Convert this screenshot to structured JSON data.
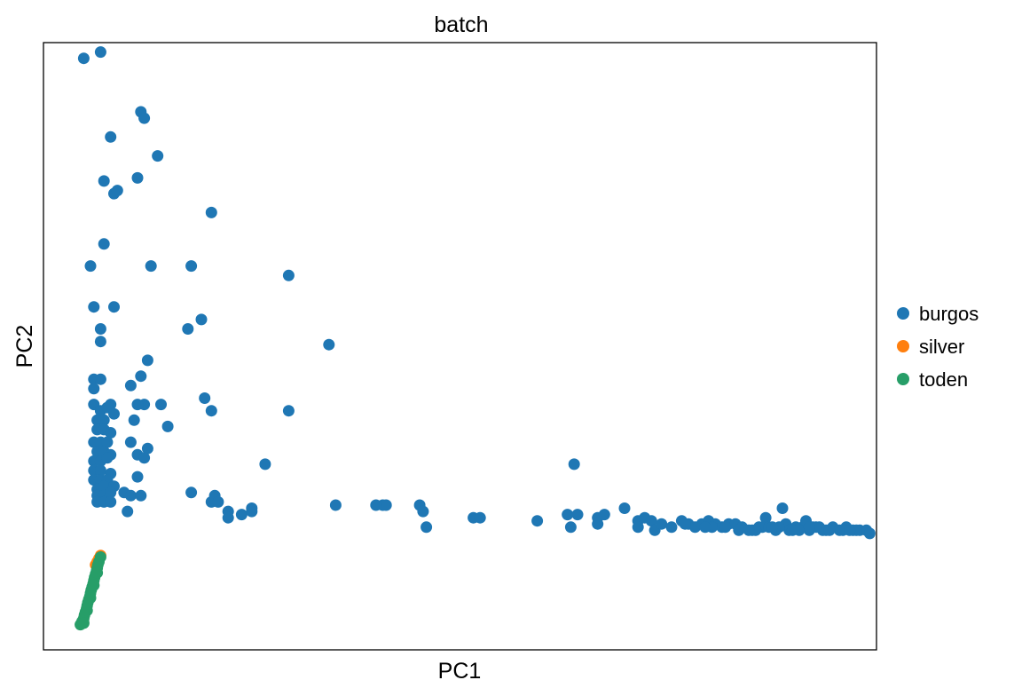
{
  "chart_data": {
    "type": "scatter",
    "title": "batch",
    "xlabel": "PC1",
    "ylabel": "PC2",
    "xlim": [
      -1.2,
      23.6
    ],
    "ylim": [
      -1.8,
      17.5
    ],
    "grid": false,
    "ticks": false,
    "legend": "right",
    "series": [
      {
        "name": "burgos",
        "color": "#1f77b4",
        "points": [
          [
            0.0,
            17.0
          ],
          [
            0.5,
            17.2
          ],
          [
            1.7,
            15.3
          ],
          [
            1.8,
            15.1
          ],
          [
            0.8,
            14.5
          ],
          [
            2.2,
            13.9
          ],
          [
            0.6,
            13.1
          ],
          [
            1.6,
            13.2
          ],
          [
            0.9,
            12.7
          ],
          [
            1.0,
            12.8
          ],
          [
            3.8,
            12.1
          ],
          [
            0.6,
            11.1
          ],
          [
            0.2,
            10.4
          ],
          [
            2.0,
            10.4
          ],
          [
            3.2,
            10.4
          ],
          [
            6.1,
            10.1
          ],
          [
            0.3,
            9.1
          ],
          [
            0.9,
            9.1
          ],
          [
            3.5,
            8.7
          ],
          [
            3.1,
            8.4
          ],
          [
            0.5,
            8.4
          ],
          [
            0.5,
            8.0
          ],
          [
            7.3,
            7.9
          ],
          [
            1.9,
            7.4
          ],
          [
            0.3,
            6.8
          ],
          [
            0.5,
            6.8
          ],
          [
            1.7,
            6.9
          ],
          [
            1.4,
            6.6
          ],
          [
            1.8,
            6.0
          ],
          [
            0.3,
            6.5
          ],
          [
            3.6,
            6.2
          ],
          [
            0.8,
            6.0
          ],
          [
            1.6,
            6.0
          ],
          [
            2.3,
            6.0
          ],
          [
            3.8,
            5.8
          ],
          [
            6.1,
            5.8
          ],
          [
            0.3,
            6.0
          ],
          [
            0.5,
            5.8
          ],
          [
            0.7,
            5.9
          ],
          [
            0.9,
            5.7
          ],
          [
            0.4,
            5.5
          ],
          [
            0.6,
            5.5
          ],
          [
            1.5,
            5.5
          ],
          [
            0.4,
            5.2
          ],
          [
            0.6,
            5.2
          ],
          [
            0.8,
            5.1
          ],
          [
            2.5,
            5.3
          ],
          [
            0.3,
            4.8
          ],
          [
            0.5,
            4.8
          ],
          [
            0.7,
            4.8
          ],
          [
            1.4,
            4.8
          ],
          [
            0.4,
            4.5
          ],
          [
            0.6,
            4.5
          ],
          [
            0.8,
            4.4
          ],
          [
            1.9,
            4.6
          ],
          [
            1.6,
            4.4
          ],
          [
            1.8,
            4.3
          ],
          [
            0.3,
            4.2
          ],
          [
            0.5,
            4.2
          ],
          [
            0.7,
            4.3
          ],
          [
            5.4,
            4.1
          ],
          [
            0.3,
            3.9
          ],
          [
            0.5,
            3.9
          ],
          [
            0.8,
            3.8
          ],
          [
            0.3,
            3.6
          ],
          [
            0.5,
            3.6
          ],
          [
            0.7,
            3.6
          ],
          [
            1.6,
            3.7
          ],
          [
            0.4,
            3.3
          ],
          [
            0.6,
            3.4
          ],
          [
            0.9,
            3.4
          ],
          [
            0.4,
            3.1
          ],
          [
            0.6,
            3.1
          ],
          [
            0.8,
            3.2
          ],
          [
            1.2,
            3.2
          ],
          [
            1.4,
            3.1
          ],
          [
            1.7,
            3.1
          ],
          [
            3.2,
            3.2
          ],
          [
            3.9,
            3.1
          ],
          [
            0.4,
            2.9
          ],
          [
            0.6,
            2.9
          ],
          [
            0.8,
            2.9
          ],
          [
            3.8,
            2.9
          ],
          [
            4.0,
            2.9
          ],
          [
            1.3,
            2.6
          ],
          [
            4.3,
            2.6
          ],
          [
            4.3,
            2.4
          ],
          [
            4.7,
            2.5
          ],
          [
            5.0,
            2.7
          ],
          [
            5.0,
            2.6
          ],
          [
            7.5,
            2.8
          ],
          [
            8.9,
            2.8
          ],
          [
            9.0,
            2.8
          ],
          [
            10.0,
            2.8
          ],
          [
            10.1,
            2.6
          ],
          [
            8.7,
            2.8
          ],
          [
            10.2,
            2.1
          ],
          [
            13.5,
            2.3
          ],
          [
            14.5,
            2.1
          ],
          [
            14.6,
            4.1
          ],
          [
            11.6,
            2.4
          ],
          [
            11.8,
            2.4
          ],
          [
            14.4,
            2.5
          ],
          [
            14.7,
            2.5
          ],
          [
            15.3,
            2.4
          ],
          [
            15.3,
            2.2
          ],
          [
            16.1,
            2.7
          ],
          [
            15.5,
            2.5
          ],
          [
            16.5,
            2.3
          ],
          [
            16.5,
            2.1
          ],
          [
            16.7,
            2.4
          ],
          [
            16.9,
            2.3
          ],
          [
            17.0,
            2.0
          ],
          [
            17.2,
            2.2
          ],
          [
            17.5,
            2.1
          ],
          [
            17.8,
            2.3
          ],
          [
            18.0,
            2.2
          ],
          [
            18.2,
            2.1
          ],
          [
            18.4,
            2.2
          ],
          [
            18.6,
            2.3
          ],
          [
            18.8,
            2.2
          ],
          [
            19.0,
            2.1
          ],
          [
            19.2,
            2.2
          ],
          [
            19.4,
            2.2
          ],
          [
            19.6,
            2.1
          ],
          [
            20.3,
            2.4
          ],
          [
            19.9,
            2.0
          ],
          [
            20.1,
            2.1
          ],
          [
            20.2,
            2.1
          ],
          [
            20.4,
            2.1
          ],
          [
            20.8,
            2.7
          ],
          [
            20.9,
            2.2
          ],
          [
            21.0,
            2.0
          ],
          [
            21.2,
            2.1
          ],
          [
            21.4,
            2.1
          ],
          [
            21.5,
            2.3
          ],
          [
            21.7,
            2.1
          ],
          [
            21.9,
            2.1
          ],
          [
            22.1,
            2.0
          ],
          [
            22.3,
            2.1
          ],
          [
            22.5,
            2.0
          ],
          [
            22.7,
            2.1
          ],
          [
            22.9,
            2.0
          ],
          [
            23.1,
            2.0
          ],
          [
            23.3,
            2.0
          ],
          [
            23.4,
            1.9
          ],
          [
            22.0,
            2.0
          ],
          [
            21.6,
            2.0
          ],
          [
            20.6,
            2.0
          ],
          [
            21.3,
            2.0
          ],
          [
            20.7,
            2.1
          ],
          [
            19.5,
            2.0
          ],
          [
            18.7,
            2.1
          ],
          [
            22.6,
            2.0
          ],
          [
            23.0,
            2.0
          ],
          [
            21.8,
            2.1
          ],
          [
            20.0,
            2.0
          ],
          [
            22.8,
            2.0
          ],
          [
            19.1,
            2.1
          ],
          [
            21.1,
            2.0
          ],
          [
            18.5,
            2.1
          ],
          [
            17.9,
            2.2
          ],
          [
            19.8,
            2.0
          ],
          [
            20.5,
            2.1
          ],
          [
            21.6,
            2.1
          ],
          [
            22.2,
            2.0
          ]
        ]
      },
      {
        "name": "silver",
        "color": "#ff7f0e",
        "points": [
          [
            0.5,
            1.2
          ],
          [
            0.45,
            1.1
          ],
          [
            0.4,
            1.0
          ],
          [
            0.35,
            0.9
          ]
        ]
      },
      {
        "name": "toden",
        "color": "#279e68",
        "points": [
          [
            -0.1,
            -1.0
          ],
          [
            0.0,
            -0.8
          ],
          [
            0.05,
            -0.6
          ],
          [
            0.1,
            -0.4
          ],
          [
            0.15,
            -0.2
          ],
          [
            0.2,
            0.0
          ],
          [
            0.25,
            0.2
          ],
          [
            0.3,
            0.4
          ],
          [
            0.35,
            0.6
          ],
          [
            0.4,
            0.8
          ],
          [
            0.45,
            1.0
          ],
          [
            0.5,
            1.15
          ],
          [
            -0.05,
            -0.9
          ],
          [
            0.02,
            -0.7
          ],
          [
            0.08,
            -0.5
          ],
          [
            0.12,
            -0.3
          ],
          [
            0.18,
            -0.1
          ],
          [
            0.22,
            0.1
          ],
          [
            0.28,
            0.3
          ],
          [
            0.32,
            0.5
          ],
          [
            0.38,
            0.7
          ],
          [
            0.42,
            0.9
          ],
          [
            0.0,
            -0.95
          ],
          [
            0.1,
            -0.55
          ],
          [
            0.2,
            -0.15
          ],
          [
            0.3,
            0.25
          ],
          [
            0.4,
            0.65
          ]
        ]
      }
    ]
  }
}
